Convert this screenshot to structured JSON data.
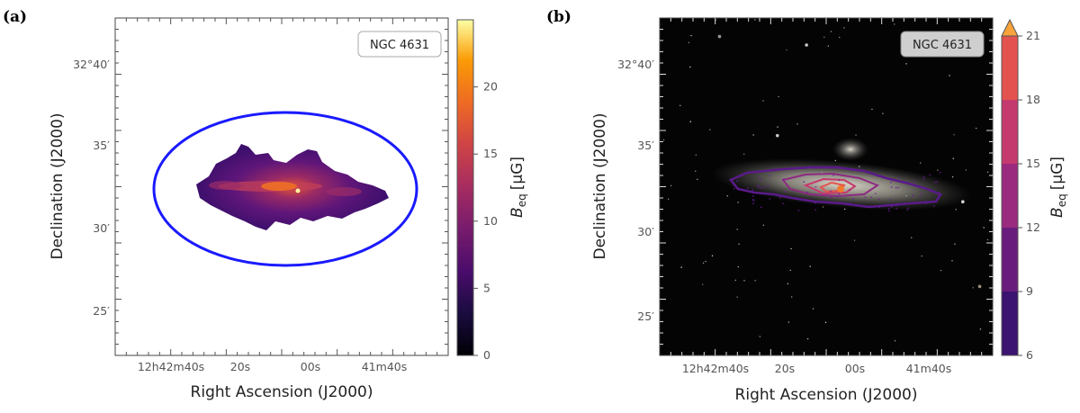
{
  "panels": [
    {
      "label": "(a)"
    },
    {
      "label": "(b)"
    }
  ],
  "chart_data": [
    {
      "type": "heatmap",
      "panel": "(a)",
      "object_name": "NGC 4631",
      "xlabel": "Right Ascension (J2000)",
      "ylabel": "Declination (J2000)",
      "x_ticks": [
        "12h42m40s",
        "20s",
        "00s",
        "41m40s"
      ],
      "y_ticks": [
        "32°40′",
        "35′",
        "30′",
        "25′"
      ],
      "colorbar": {
        "label": "B_eq [μG]",
        "label_main": "B",
        "label_sub": "eq",
        "label_unit": "[μG]",
        "range": [
          0,
          25
        ],
        "ticks": [
          "0",
          "5",
          "10",
          "15",
          "20"
        ],
        "colormap": "inferno"
      },
      "overlay": "blue ellipse marking integration region",
      "ellipse_color": "#1a1aff"
    },
    {
      "type": "heatmap",
      "panel": "(b)",
      "object_name": "NGC 4631",
      "xlabel": "Right Ascension (J2000)",
      "ylabel": "Declination (J2000)",
      "x_ticks": [
        "12h42m40s",
        "20s",
        "00s",
        "41m40s"
      ],
      "y_ticks": [
        "32°40′",
        "35′",
        "30′",
        "25′"
      ],
      "colorbar": {
        "label": "B_eq [μG]",
        "label_main": "B",
        "label_sub": "eq",
        "label_unit": "[μG]",
        "range": [
          6,
          21
        ],
        "ticks": [
          "6",
          "9",
          "12",
          "15",
          "18",
          "21"
        ],
        "levels": [
          6,
          9,
          12,
          15,
          18,
          21
        ],
        "level_colors": [
          "#3b1370",
          "#6a1c7c",
          "#9a2a7e",
          "#c53a6e",
          "#e4524f",
          "#f07a2e"
        ],
        "extend_color": "#f7a23a"
      },
      "contour_levels": [
        9,
        12,
        15,
        18
      ]
    }
  ]
}
